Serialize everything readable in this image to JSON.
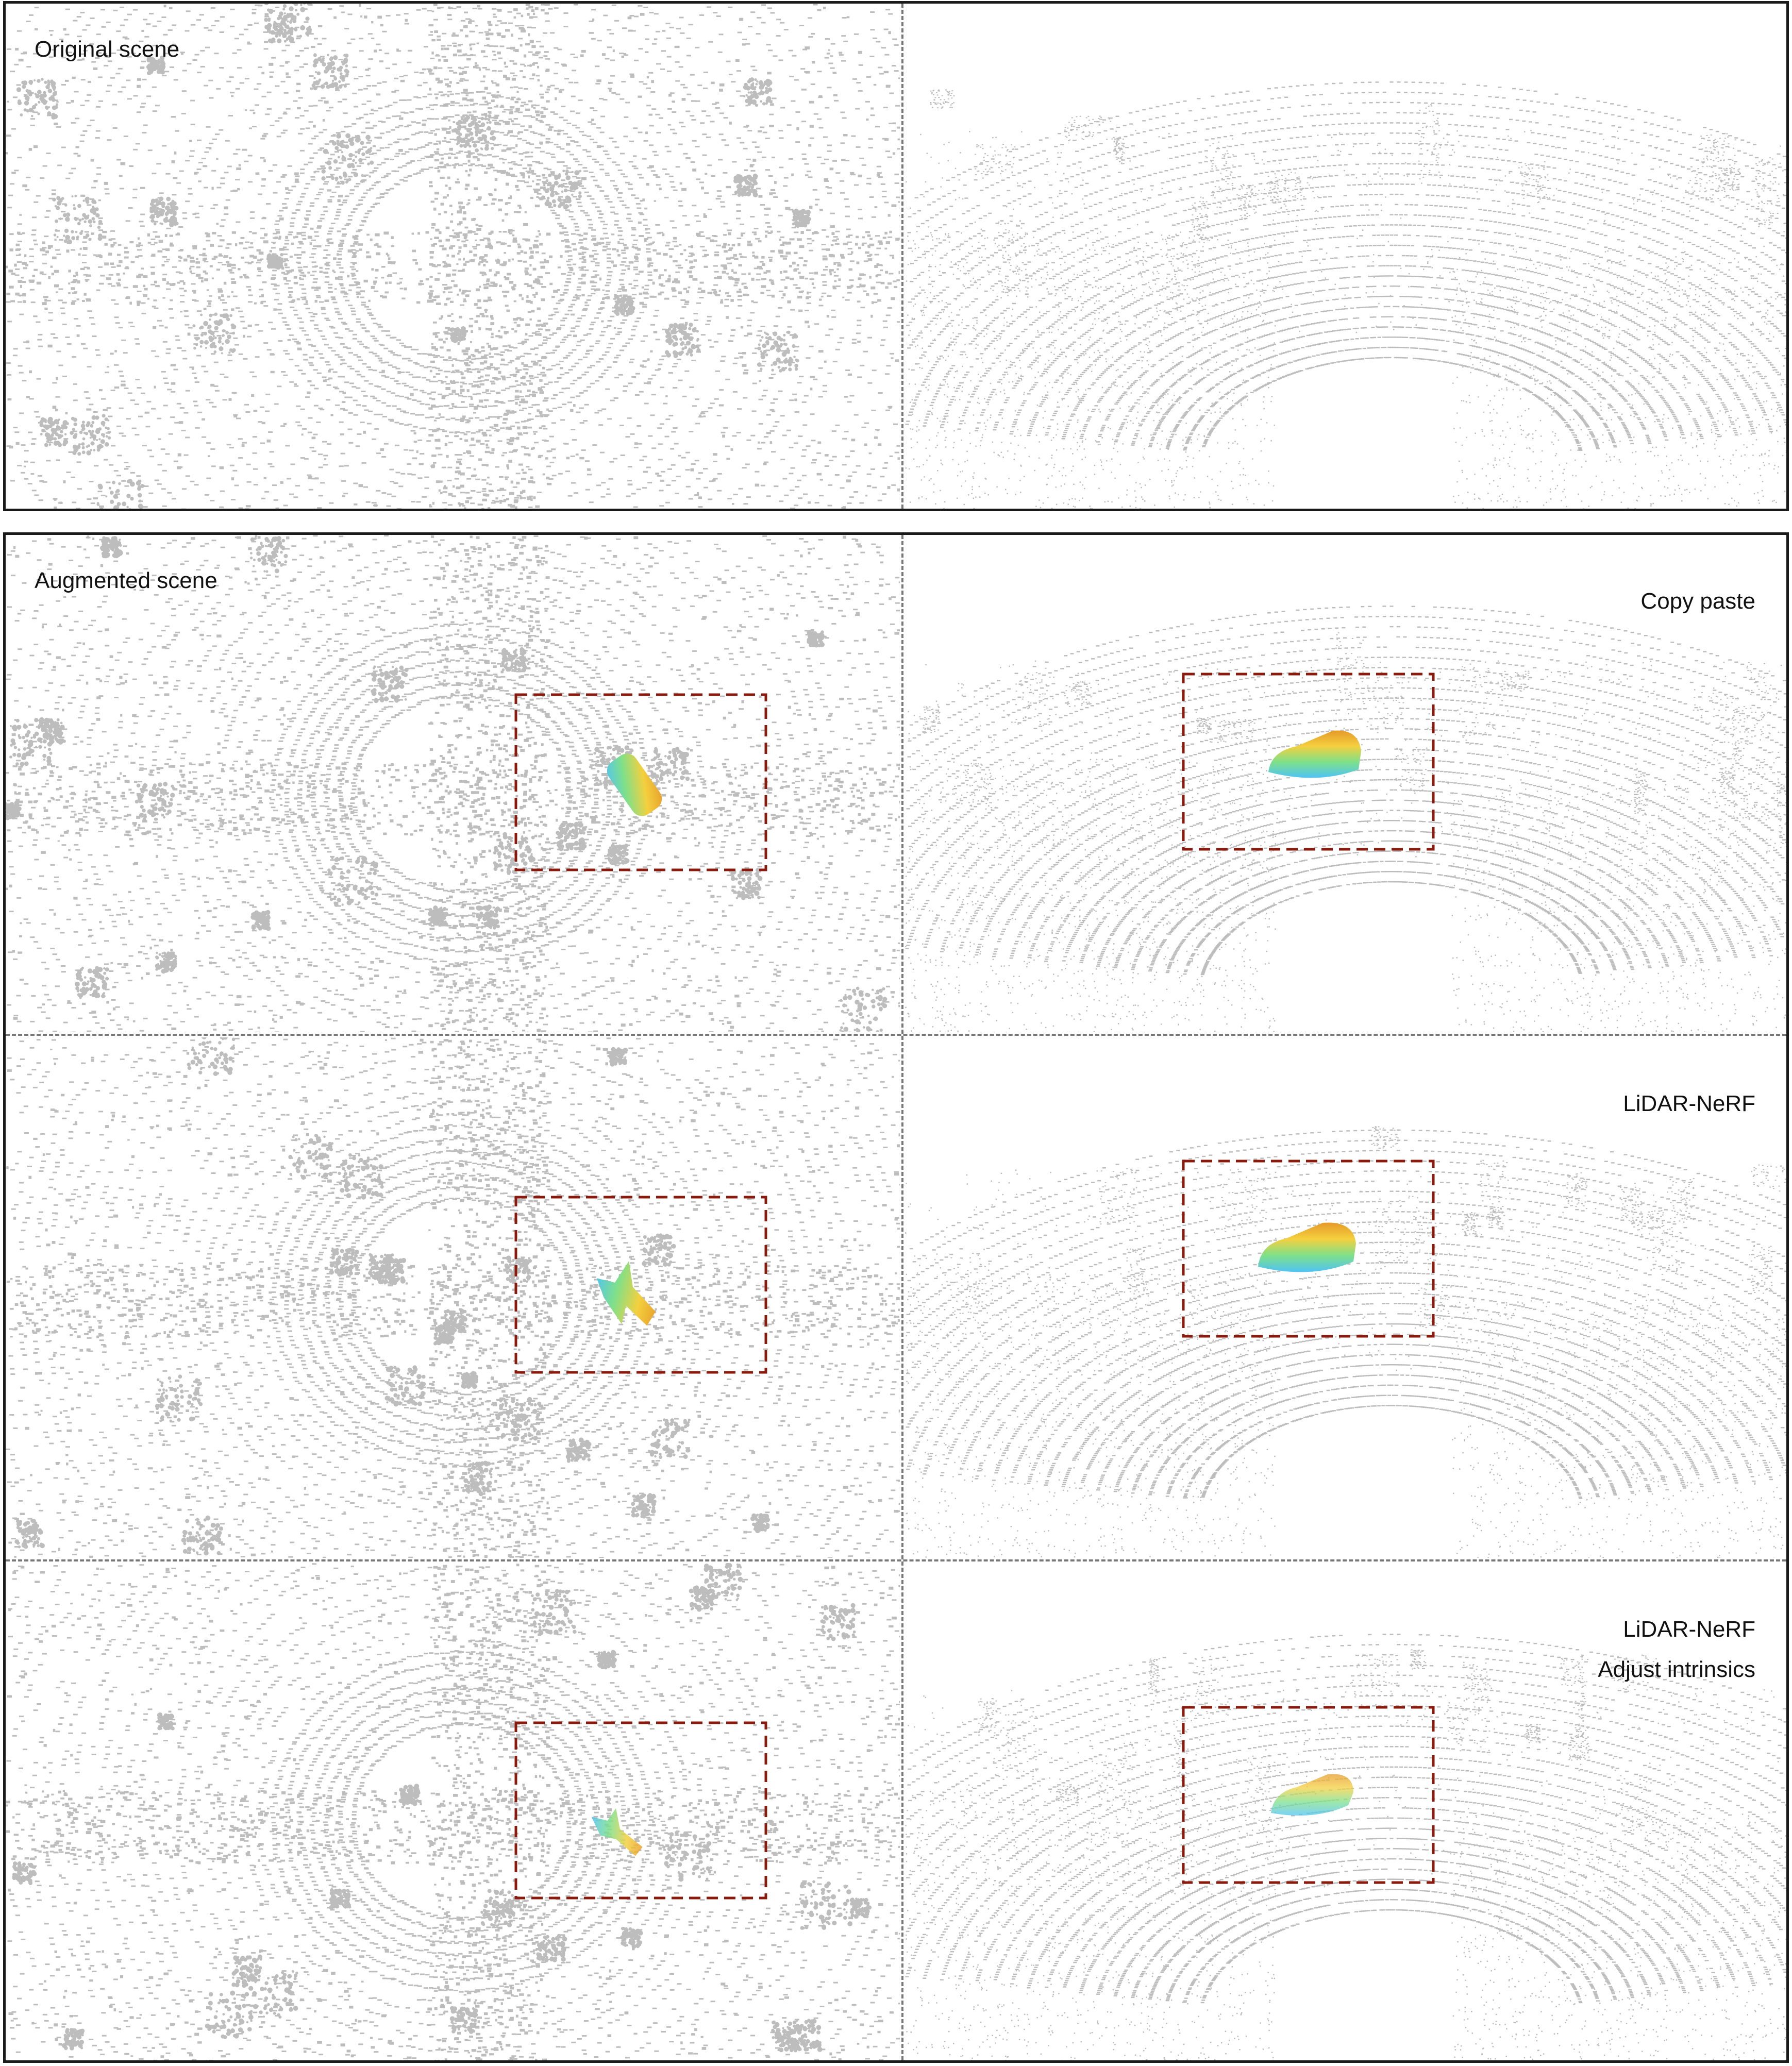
{
  "figure": {
    "original": {
      "label": "Original scene"
    },
    "augmented": {
      "label": "Augmented scene"
    },
    "methods": [
      {
        "label_line1": "Copy paste",
        "label_line2": ""
      },
      {
        "label_line1": "LiDAR-NeRF",
        "label_line2": ""
      },
      {
        "label_line1": "LiDAR-NeRF",
        "label_line2": "Adjust intrinsics"
      }
    ]
  },
  "colors": {
    "point_cloud": "#bdbdbd",
    "highlight_box": "#8b1a0c",
    "separator": "#777777",
    "frame": "#1a1a1a",
    "object_gradient": [
      "#4fc3f7",
      "#7ee08a",
      "#f4d03f",
      "#e69a28"
    ]
  }
}
